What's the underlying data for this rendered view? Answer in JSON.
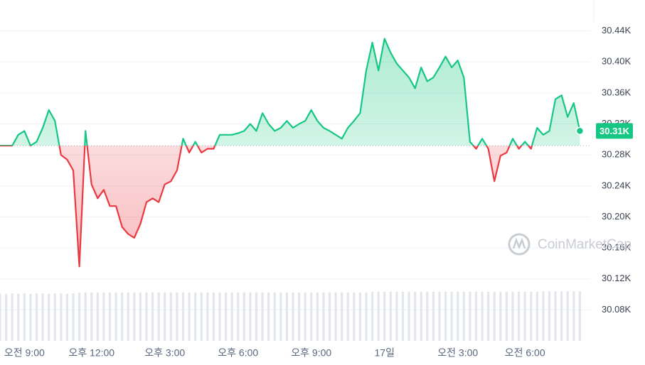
{
  "chart_data": {
    "type": "line",
    "values": [
      30292,
      30292,
      30292,
      30306,
      30311,
      30292,
      30297,
      30315,
      30338,
      30324,
      30280,
      30274,
      30260,
      30136,
      30311,
      30242,
      30224,
      30235,
      30214,
      30214,
      30187,
      30178,
      30173,
      30191,
      30219,
      30224,
      30219,
      30242,
      30246,
      30260,
      30301,
      30283,
      30297,
      30283,
      30288,
      30288,
      30306,
      30306,
      30306,
      30308,
      30311,
      30320,
      30311,
      30334,
      30320,
      30311,
      30315,
      30324,
      30315,
      30320,
      30324,
      30338,
      30324,
      30315,
      30311,
      30306,
      30301,
      30315,
      30324,
      30334,
      30389,
      30425,
      30389,
      30430,
      30412,
      30398,
      30389,
      30380,
      30366,
      30393,
      30375,
      30380,
      30393,
      30407,
      30393,
      30402,
      30380,
      30297,
      30288,
      30301,
      30288,
      30246,
      30279,
      30283,
      30301,
      30288,
      30297,
      30288,
      30315,
      30306,
      30311,
      30352,
      30357,
      30329,
      30347,
      30311
    ],
    "volume": [
      92,
      92,
      93,
      92,
      93,
      92,
      93,
      93,
      92,
      93,
      93,
      92,
      93,
      94,
      95,
      95,
      95,
      95,
      95,
      95,
      95,
      95,
      95,
      95,
      95,
      95,
      95,
      95,
      95,
      95,
      95,
      95,
      95,
      95,
      95,
      95,
      95,
      95,
      95,
      95,
      95,
      95,
      95,
      95,
      95,
      95,
      95,
      95,
      95,
      95,
      95,
      95,
      95,
      95,
      95,
      95,
      95,
      95,
      95,
      95,
      95,
      96,
      96,
      96,
      96,
      96,
      96,
      96,
      96,
      96,
      96,
      96,
      96,
      96,
      96,
      96,
      96,
      96,
      96,
      96,
      96,
      96,
      96,
      96,
      96,
      96,
      96,
      96,
      96,
      97,
      97,
      97,
      97,
      97,
      97,
      97
    ],
    "volume_lim": [
      0,
      100
    ],
    "up_color": "#16c784",
    "down_color": "#ea3943",
    "current_label": "30.31K",
    "watermark": "CoinMarketCap",
    "xlim": [
      0,
      96.7
    ],
    "xticks": [
      {
        "value": 4,
        "label": "오전 9:00"
      },
      {
        "value": 15,
        "label": "오후 12:00"
      },
      {
        "value": 27,
        "label": "오후 3:00"
      },
      {
        "value": 39,
        "label": "오후 6:00"
      },
      {
        "value": 51,
        "label": "오후 9:00"
      },
      {
        "value": 63,
        "label": "17일"
      },
      {
        "value": 75,
        "label": "오전 3:00"
      },
      {
        "value": 86,
        "label": "오전 6:00"
      }
    ],
    "ylim": [
      30040,
      30480
    ],
    "yticks": [
      {
        "value": 30080,
        "label": "30.08K"
      },
      {
        "value": 30120,
        "label": "30.12K"
      },
      {
        "value": 30160,
        "label": "30.16K"
      },
      {
        "value": 30200,
        "label": "30.20K"
      },
      {
        "value": 30240,
        "label": "30.24K"
      },
      {
        "value": 30280,
        "label": "30.28K"
      },
      {
        "value": 30320,
        "label": "30.32K"
      },
      {
        "value": 30360,
        "label": "30.36K"
      },
      {
        "value": 30400,
        "label": "30.40K"
      },
      {
        "value": 30440,
        "label": "30.44K"
      }
    ],
    "grid": true
  }
}
